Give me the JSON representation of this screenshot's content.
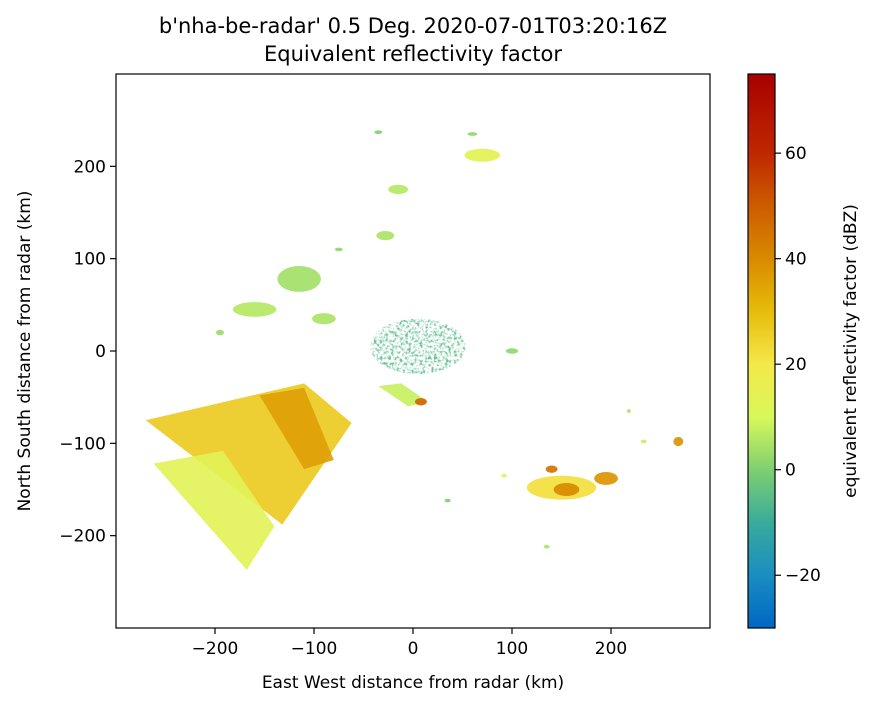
{
  "chart_data": {
    "type": "heatmap",
    "title": "b'nha-be-radar' 0.5 Deg. 2020-07-01T03:20:16Z",
    "subtitle": "Equivalent reflectivity factor",
    "xlabel": "East West distance from radar (km)",
    "ylabel": "North South distance from radar (km)",
    "xlim": [
      -300,
      300
    ],
    "ylim": [
      -300,
      300
    ],
    "xticks": [
      -200,
      -100,
      0,
      100,
      200
    ],
    "yticks": [
      -200,
      -100,
      0,
      100,
      200
    ],
    "xtick_labels": [
      "−200",
      "−100",
      "0",
      "100",
      "200"
    ],
    "ytick_labels": [
      "−200",
      "−100",
      "0",
      "100",
      "200"
    ],
    "grid": false,
    "colorbar": {
      "label": "equivalent reflectivity factor (dBZ)",
      "range": [
        -30,
        75
      ],
      "ticks": [
        -20,
        0,
        20,
        40,
        60
      ],
      "tick_labels": [
        "−20",
        "0",
        "20",
        "40",
        "60"
      ],
      "colors": [
        {
          "value": -30,
          "color": "#0066c4"
        },
        {
          "value": -20,
          "color": "#1a8ec0"
        },
        {
          "value": -10,
          "color": "#39ab9c"
        },
        {
          "value": 0,
          "color": "#7fcf70"
        },
        {
          "value": 10,
          "color": "#d8f85a"
        },
        {
          "value": 20,
          "color": "#f5e84a"
        },
        {
          "value": 30,
          "color": "#e6bc0a"
        },
        {
          "value": 40,
          "color": "#d98a00"
        },
        {
          "value": 50,
          "color": "#cc5c00"
        },
        {
          "value": 60,
          "color": "#bf2800"
        },
        {
          "value": 75,
          "color": "#a80000"
        }
      ]
    },
    "echo_regions": [
      {
        "name": "central-clutter",
        "center": [
          5,
          5
        ],
        "radius": [
          48,
          30
        ],
        "dbz": -6
      },
      {
        "name": "southwest-sector-near",
        "polygon": [
          [
            -270,
            -75
          ],
          [
            -110,
            -35
          ],
          [
            -62,
            -78
          ],
          [
            -132,
            -188
          ]
        ],
        "dbz": 27
      },
      {
        "name": "southwest-sector-far",
        "polygon": [
          [
            -262,
            -122
          ],
          [
            -192,
            -108
          ],
          [
            -140,
            -190
          ],
          [
            -168,
            -237
          ]
        ],
        "dbz": 13
      },
      {
        "name": "southwest-strong-core",
        "polygon": [
          [
            -155,
            -48
          ],
          [
            -110,
            -40
          ],
          [
            -80,
            -118
          ],
          [
            -110,
            -128
          ]
        ],
        "dbz": 36
      },
      {
        "name": "near-southwest-band",
        "polygon": [
          [
            -35,
            -38
          ],
          [
            -12,
            -35
          ],
          [
            15,
            -55
          ],
          [
            -5,
            -60
          ]
        ],
        "dbz": 8
      },
      {
        "name": "near-southwest-core",
        "center": [
          8,
          -55
        ],
        "radius": [
          6,
          4
        ],
        "dbz": 48
      },
      {
        "name": "southeast-cell",
        "center": [
          150,
          -148
        ],
        "radius": [
          35,
          13
        ],
        "dbz": 22
      },
      {
        "name": "southeast-core",
        "center": [
          155,
          -150
        ],
        "radius": [
          13,
          7
        ],
        "dbz": 40
      },
      {
        "name": "southeast-east-cell",
        "center": [
          195,
          -138
        ],
        "radius": [
          12,
          7
        ],
        "dbz": 38
      },
      {
        "name": "southeast-north-bit",
        "center": [
          140,
          -128
        ],
        "radius": [
          6,
          4
        ],
        "dbz": 45
      },
      {
        "name": "far-east-cell",
        "center": [
          268,
          -98
        ],
        "radius": [
          5,
          5
        ],
        "dbz": 38
      },
      {
        "name": "northwest-patch-1",
        "center": [
          -115,
          78
        ],
        "radius": [
          22,
          14
        ],
        "dbz": 4
      },
      {
        "name": "northwest-patch-2",
        "center": [
          -160,
          45
        ],
        "radius": [
          22,
          8
        ],
        "dbz": 6
      },
      {
        "name": "northwest-patch-3",
        "center": [
          -90,
          35
        ],
        "radius": [
          12,
          6
        ],
        "dbz": 5
      },
      {
        "name": "north-cell-1",
        "center": [
          70,
          212
        ],
        "radius": [
          18,
          7
        ],
        "dbz": 14
      },
      {
        "name": "north-cell-2",
        "center": [
          -15,
          175
        ],
        "radius": [
          10,
          5
        ],
        "dbz": 6
      },
      {
        "name": "north-cell-3",
        "center": [
          -28,
          125
        ],
        "radius": [
          9,
          5
        ],
        "dbz": 5
      },
      {
        "name": "east-small",
        "center": [
          100,
          0
        ],
        "radius": [
          6,
          3
        ],
        "dbz": 2
      },
      {
        "name": "small-1",
        "center": [
          -195,
          20
        ],
        "radius": [
          4,
          3
        ],
        "dbz": 3
      },
      {
        "name": "small-2",
        "center": [
          60,
          235
        ],
        "radius": [
          5,
          2
        ],
        "dbz": 2
      },
      {
        "name": "small-3",
        "center": [
          -35,
          237
        ],
        "radius": [
          4,
          2
        ],
        "dbz": 0
      },
      {
        "name": "small-4",
        "center": [
          35,
          -162
        ],
        "radius": [
          3,
          2
        ],
        "dbz": 0
      },
      {
        "name": "small-5",
        "center": [
          135,
          -212
        ],
        "radius": [
          3,
          2
        ],
        "dbz": 5
      },
      {
        "name": "small-6",
        "center": [
          92,
          -135
        ],
        "radius": [
          3,
          2
        ],
        "dbz": 10
      },
      {
        "name": "small-7",
        "center": [
          218,
          -65
        ],
        "radius": [
          2,
          2
        ],
        "dbz": 5
      },
      {
        "name": "small-8",
        "center": [
          233,
          -98
        ],
        "radius": [
          3,
          2
        ],
        "dbz": 8
      },
      {
        "name": "small-9",
        "center": [
          -75,
          110
        ],
        "radius": [
          4,
          2
        ],
        "dbz": 2
      }
    ]
  }
}
